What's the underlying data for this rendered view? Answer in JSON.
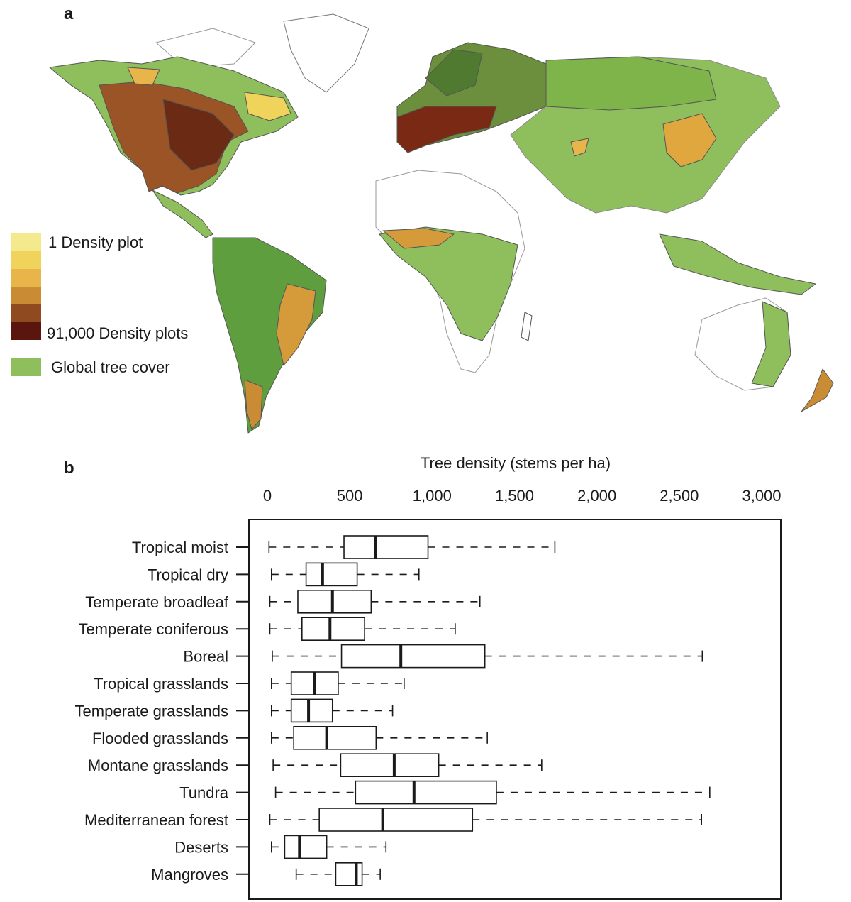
{
  "panel_a": {
    "letter": "a",
    "legend": {
      "low_label": "1 Density plot",
      "high_label": "91,000 Density plots",
      "tree_cover_label": "Global tree cover",
      "colors": [
        "#f4e98c",
        "#f0d35b",
        "#e7b54a",
        "#c98b33",
        "#8f4a1f",
        "#5a150e"
      ],
      "tree_cover_color": "#8fbf5c"
    }
  },
  "panel_b": {
    "letter": "b"
  },
  "chart_data": {
    "type": "boxplot",
    "title": "Tree density (stems per ha)",
    "xlabel": "Tree density (stems per ha)",
    "xlim": [
      -100,
      3100
    ],
    "xticks": [
      0,
      500,
      1000,
      1500,
      2000,
      2500,
      3000
    ],
    "xtick_labels": [
      "0",
      "500",
      "1,000",
      "1,500",
      "2,000",
      "2,500",
      "3,000"
    ],
    "categories": [
      "Tropical moist",
      "Tropical dry",
      "Temperate broadleaf",
      "Temperate coniferous",
      "Boreal",
      "Tropical grasslands",
      "Temperate grasslands",
      "Flooded grasslands",
      "Montane grasslands",
      "Tundra",
      "Mediterranean forest",
      "Deserts",
      "Mangroves"
    ],
    "boxes": [
      {
        "whisker_low": 10,
        "q1": 465,
        "median": 655,
        "q3": 975,
        "whisker_high": 1745
      },
      {
        "whisker_low": 25,
        "q1": 235,
        "median": 335,
        "q3": 545,
        "whisker_high": 920
      },
      {
        "whisker_low": 15,
        "q1": 185,
        "median": 395,
        "q3": 630,
        "whisker_high": 1290
      },
      {
        "whisker_low": 15,
        "q1": 210,
        "median": 380,
        "q3": 590,
        "whisker_high": 1140
      },
      {
        "whisker_low": 30,
        "q1": 450,
        "median": 810,
        "q3": 1320,
        "whisker_high": 2640
      },
      {
        "whisker_low": 25,
        "q1": 145,
        "median": 285,
        "q3": 430,
        "whisker_high": 830
      },
      {
        "whisker_low": 25,
        "q1": 145,
        "median": 250,
        "q3": 395,
        "whisker_high": 760
      },
      {
        "whisker_low": 25,
        "q1": 160,
        "median": 360,
        "q3": 660,
        "whisker_high": 1335
      },
      {
        "whisker_low": 35,
        "q1": 445,
        "median": 770,
        "q3": 1040,
        "whisker_high": 1665
      },
      {
        "whisker_low": 50,
        "q1": 535,
        "median": 890,
        "q3": 1390,
        "whisker_high": 2685
      },
      {
        "whisker_low": 15,
        "q1": 315,
        "median": 700,
        "q3": 1245,
        "whisker_high": 2635
      },
      {
        "whisker_low": 25,
        "q1": 105,
        "median": 195,
        "q3": 360,
        "whisker_high": 720
      },
      {
        "whisker_low": 175,
        "q1": 415,
        "median": 540,
        "q3": 575,
        "whisker_high": 685
      }
    ]
  }
}
